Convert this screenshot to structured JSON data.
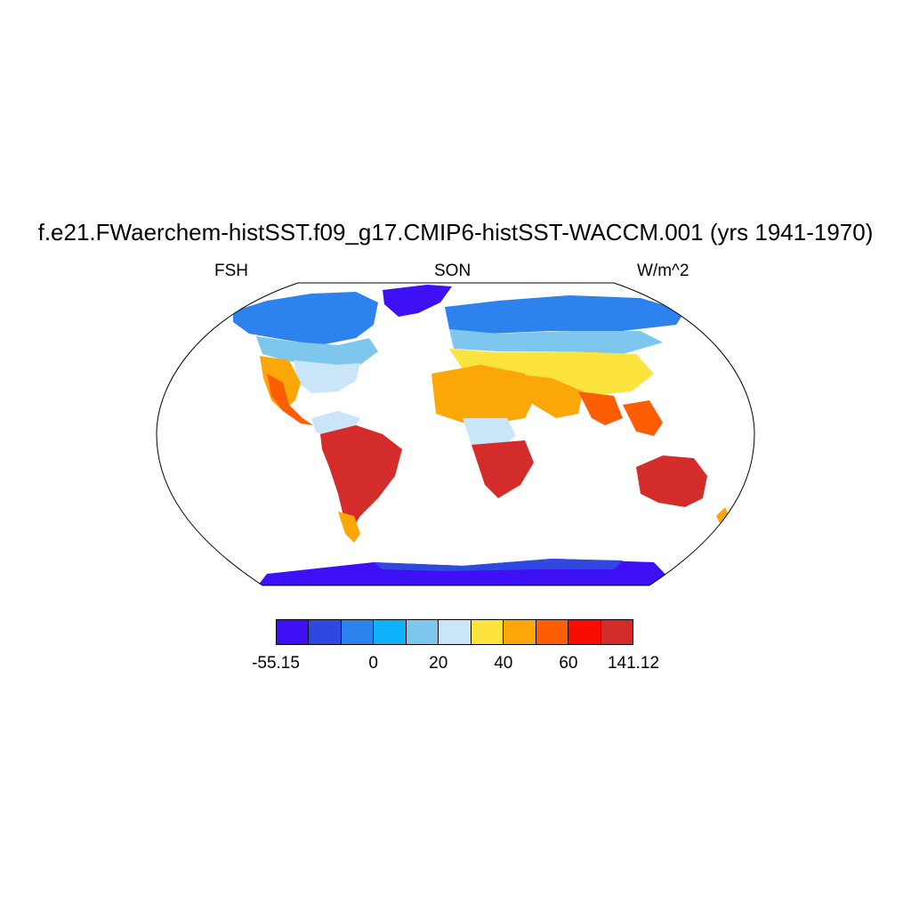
{
  "title": "f.e21.FWaerchem-histSST.f09_g17.CMIP6-histSST-WACCM.001 (yrs 1941-1970)",
  "left_label": "FSH",
  "center_label": "SON",
  "right_label": "W/m^2",
  "colorbar": {
    "colors": [
      "#3d10f5",
      "#2f48e0",
      "#2e82ee",
      "#0fb1fb",
      "#7dc6ee",
      "#c9e5f7",
      "#fde33d",
      "#fba708",
      "#fd5e03",
      "#f80d00",
      "#d42b2b"
    ],
    "tick_labels": [
      {
        "label": "-55.15",
        "index": 0
      },
      {
        "label": "0",
        "index": 3
      },
      {
        "label": "20",
        "index": 5
      },
      {
        "label": "40",
        "index": 7
      },
      {
        "label": "60",
        "index": 9
      },
      {
        "label": "141.12",
        "index": 11
      }
    ]
  }
}
